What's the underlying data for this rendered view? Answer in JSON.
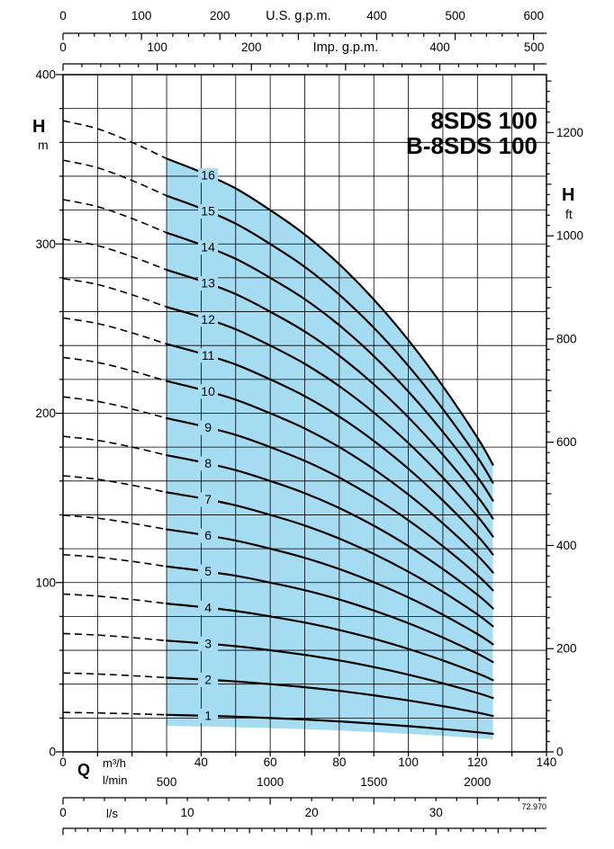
{
  "title": {
    "line1": "8SDS 100",
    "line2": "B-8SDS 100"
  },
  "watermark": "72.970",
  "axis_symbols": {
    "left_head": "H",
    "left_unit": "m",
    "right_head": "H",
    "right_unit": "ft",
    "flow": "Q",
    "flow_unit_m3h": "m³/h",
    "flow_unit_lmin": "l/min",
    "flow_unit_ls": "l/s"
  },
  "axis_titles": {
    "us_gpm": "U.S. g.p.m.",
    "imp_gpm": "Imp. g.p.m."
  },
  "colors": {
    "region": "#a6dcf2",
    "curve": "#000000",
    "grid": "#000000",
    "axis": "#000000",
    "text": "#000000",
    "background": "#ffffff"
  },
  "chart_data": {
    "type": "line",
    "description": "Pump head/flow performance curves for 1 to 16 stages with shaded recommended operating region",
    "x_axis_m3h": {
      "min": 0,
      "max": 140,
      "grid_step": 10,
      "label_ticks": [
        0,
        40,
        60,
        80,
        100,
        120,
        140
      ]
    },
    "y_axis_m": {
      "min": 0,
      "max": 400,
      "grid_step": 20,
      "label_ticks": [
        0,
        100,
        200,
        300,
        400
      ]
    },
    "top_axis_us_gpm": {
      "max": 600,
      "minor_step": 20,
      "major_step": 100,
      "labels": [
        0,
        100,
        200,
        400,
        500,
        600
      ],
      "title_at": 300,
      "units_per_m3h": 4.4029
    },
    "top_axis_imp_gpm": {
      "max": 500,
      "minor_step": 20,
      "major_step": 100,
      "labels": [
        0,
        100,
        200,
        400,
        500
      ],
      "title_at": 300,
      "units_per_m3h": 3.6662
    },
    "bottom_axis_lmin": {
      "max": 2300,
      "minor_step": 100,
      "major_step": 500,
      "labels": [
        500,
        1000,
        1500,
        2000
      ],
      "units_per_m3h": 16.6667
    },
    "bottom_axis_ls": {
      "max": 38,
      "minor_step": 1,
      "medium_step": 5,
      "major_step": 10,
      "labels": [
        0,
        10,
        20,
        30
      ],
      "units_per_m3h": 0.27778
    },
    "right_axis_ft": {
      "max": 1300,
      "minor_step": 20,
      "medium_step": 100,
      "major_step": 200,
      "labels": [
        0,
        200,
        400,
        600,
        800,
        1000,
        1200
      ],
      "ft_per_m": 3.2808
    },
    "stage_labels": [
      1,
      2,
      3,
      4,
      5,
      6,
      7,
      8,
      9,
      10,
      11,
      12,
      13,
      14,
      15,
      16
    ],
    "flow_points_m3h": [
      0,
      10,
      20,
      30,
      40,
      50,
      60,
      70,
      80,
      90,
      100,
      110,
      120,
      124.5
    ],
    "head_per_stage_m": [
      23.3,
      23.0,
      22.5,
      21.9,
      21.4,
      20.8,
      20.0,
      19.1,
      18.0,
      16.7,
      15.2,
      13.5,
      11.6,
      10.6
    ],
    "operating_range_m3h": [
      30,
      124.5
    ],
    "region_bottom_fraction": 0.7,
    "stage_label_at_m3h": 42
  }
}
